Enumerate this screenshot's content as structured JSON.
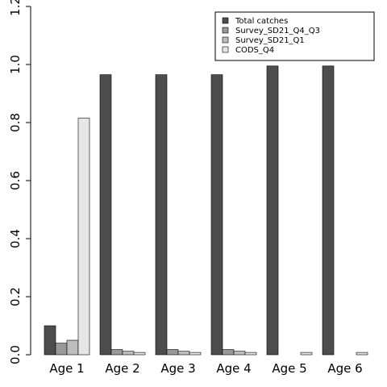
{
  "chart_data": {
    "type": "bar",
    "title": "",
    "xlabel": "",
    "ylabel": "",
    "ylim": [
      0,
      1.2
    ],
    "yticks": [
      "0.0",
      "0.2",
      "0.4",
      "0.6",
      "0.8",
      "1.0",
      "1.2"
    ],
    "categories": [
      "Age 1",
      "Age 2",
      "Age 3",
      "Age 4",
      "Age 5",
      "Age 6"
    ],
    "series": [
      {
        "name": "Total catches",
        "color": "#4d4d4d",
        "values": [
          0.1,
          0.965,
          0.965,
          0.965,
          0.995,
          0.995
        ]
      },
      {
        "name": "Survey_SD21_Q4_Q3",
        "color": "#999999",
        "values": [
          0.04,
          0.018,
          0.018,
          0.018,
          0.0,
          0.0
        ]
      },
      {
        "name": "Survey_SD21_Q1",
        "color": "#bdbdbd",
        "values": [
          0.05,
          0.012,
          0.012,
          0.012,
          0.0,
          0.0
        ]
      },
      {
        "name": "CODS_Q4",
        "color": "#e6e6e6",
        "values": [
          0.815,
          0.008,
          0.008,
          0.008,
          0.008,
          0.008
        ]
      }
    ],
    "legend_position": "top-right",
    "grid": false
  }
}
